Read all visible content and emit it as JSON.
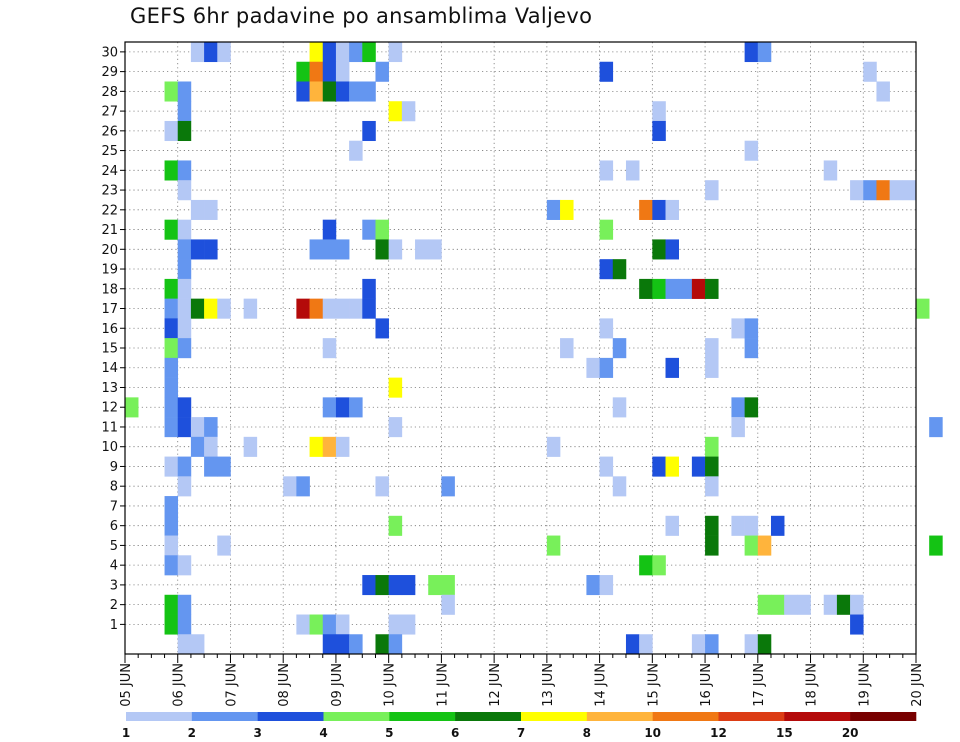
{
  "chart_data": {
    "type": "heatmap",
    "title": "GEFS 6hr padavine po ansamblima Valjevo",
    "xlabel": "",
    "ylabel": "",
    "x_ticks": [
      "05 JUN",
      "06 JUN",
      "07 JUN",
      "08 JUN",
      "09 JUN",
      "10 JUN",
      "11 JUN",
      "12 JUN",
      "13 JUN",
      "14 JUN",
      "15 JUN",
      "16 JUN",
      "17 JUN",
      "18 JUN",
      "19 JUN",
      "20 JUN"
    ],
    "y_ticks": [
      "1",
      "2",
      "3",
      "4",
      "5",
      "6",
      "7",
      "8",
      "9",
      "10",
      "11",
      "12",
      "13",
      "14",
      "15",
      "16",
      "17",
      "18",
      "19",
      "20",
      "21",
      "22",
      "23",
      "24",
      "25",
      "26",
      "27",
      "28",
      "29",
      "30"
    ],
    "time_steps_per_day": 4,
    "grid": true,
    "legend": {
      "position": "bottom",
      "labels": [
        "1",
        "2",
        "3",
        "4",
        "5",
        "6",
        "7",
        "8",
        "10",
        "12",
        "15",
        "20"
      ],
      "colors": [
        "#b4c8f5",
        "#6496f0",
        "#1e50dc",
        "#78f05a",
        "#14c314",
        "#0a780a",
        "#ffff00",
        "#ffb43c",
        "#f07814",
        "#dc3c14",
        "#b40a0a",
        "#780000"
      ]
    },
    "value_scale": {
      "1": "#b4c8f5",
      "2": "#6496f0",
      "3": "#1e50dc",
      "4": "#78f05a",
      "5": "#14c314",
      "6": "#0a780a",
      "7": "#ffff00",
      "8": "#ffb43c",
      "10": "#f07814",
      "12": "#dc3c14",
      "15": "#b40a0a",
      "20": "#780000"
    },
    "cells_note": "each cell: [member, time-step index from 05 JUN 00 (6 h steps), precipitation class]",
    "cells": [
      [
        30,
        5,
        1
      ],
      [
        30,
        6,
        3
      ],
      [
        30,
        7,
        1
      ],
      [
        30,
        14,
        7
      ],
      [
        30,
        15,
        3
      ],
      [
        30,
        16,
        1
      ],
      [
        30,
        17,
        2
      ],
      [
        30,
        18,
        5
      ],
      [
        30,
        20,
        1
      ],
      [
        30,
        47,
        3
      ],
      [
        30,
        48,
        2
      ],
      [
        29,
        13,
        5
      ],
      [
        29,
        14,
        10
      ],
      [
        29,
        15,
        3
      ],
      [
        29,
        16,
        1
      ],
      [
        29,
        19,
        2
      ],
      [
        29,
        36,
        3
      ],
      [
        29,
        56,
        1
      ],
      [
        28,
        3,
        4
      ],
      [
        28,
        4,
        2
      ],
      [
        28,
        13,
        3
      ],
      [
        28,
        14,
        8
      ],
      [
        28,
        15,
        6
      ],
      [
        28,
        16,
        3
      ],
      [
        28,
        17,
        2
      ],
      [
        28,
        18,
        2
      ],
      [
        28,
        57,
        1
      ],
      [
        27,
        4,
        2
      ],
      [
        27,
        20,
        7
      ],
      [
        27,
        21,
        1
      ],
      [
        27,
        40,
        1
      ],
      [
        26,
        3,
        1
      ],
      [
        26,
        4,
        6
      ],
      [
        26,
        18,
        3
      ],
      [
        26,
        40,
        3
      ],
      [
        25,
        17,
        1
      ],
      [
        25,
        47,
        1
      ],
      [
        24,
        3,
        5
      ],
      [
        24,
        4,
        2
      ],
      [
        24,
        36,
        1
      ],
      [
        24,
        38,
        1
      ],
      [
        24,
        53,
        1
      ],
      [
        23,
        4,
        1
      ],
      [
        23,
        44,
        1
      ],
      [
        23,
        55,
        1
      ],
      [
        23,
        56,
        2
      ],
      [
        23,
        57,
        10
      ],
      [
        23,
        58,
        1
      ],
      [
        23,
        59,
        1
      ],
      [
        22,
        5,
        1
      ],
      [
        22,
        6,
        1
      ],
      [
        22,
        32,
        2
      ],
      [
        22,
        33,
        7
      ],
      [
        22,
        39,
        10
      ],
      [
        22,
        40,
        3
      ],
      [
        22,
        41,
        1
      ],
      [
        21,
        3,
        5
      ],
      [
        21,
        4,
        1
      ],
      [
        21,
        15,
        3
      ],
      [
        21,
        18,
        2
      ],
      [
        21,
        19,
        4
      ],
      [
        21,
        36,
        4
      ],
      [
        20,
        4,
        2
      ],
      [
        20,
        5,
        3
      ],
      [
        20,
        6,
        3
      ],
      [
        20,
        14,
        2
      ],
      [
        20,
        15,
        2
      ],
      [
        20,
        16,
        2
      ],
      [
        20,
        19,
        6
      ],
      [
        20,
        20,
        1
      ],
      [
        20,
        22,
        1
      ],
      [
        20,
        23,
        1
      ],
      [
        20,
        40,
        6
      ],
      [
        20,
        41,
        3
      ],
      [
        19,
        4,
        2
      ],
      [
        19,
        36,
        3
      ],
      [
        19,
        37,
        6
      ],
      [
        18,
        3,
        5
      ],
      [
        18,
        4,
        1
      ],
      [
        18,
        18,
        3
      ],
      [
        18,
        39,
        6
      ],
      [
        18,
        40,
        5
      ],
      [
        18,
        41,
        2
      ],
      [
        18,
        42,
        2
      ],
      [
        18,
        43,
        15
      ],
      [
        18,
        44,
        6
      ],
      [
        17,
        3,
        2
      ],
      [
        17,
        4,
        1
      ],
      [
        17,
        5,
        6
      ],
      [
        17,
        6,
        7
      ],
      [
        17,
        7,
        1
      ],
      [
        17,
        9,
        1
      ],
      [
        17,
        13,
        15
      ],
      [
        17,
        14,
        10
      ],
      [
        17,
        15,
        1
      ],
      [
        17,
        16,
        1
      ],
      [
        17,
        17,
        1
      ],
      [
        17,
        18,
        3
      ],
      [
        17,
        60,
        4
      ],
      [
        16,
        3,
        3
      ],
      [
        16,
        4,
        1
      ],
      [
        16,
        19,
        3
      ],
      [
        16,
        36,
        1
      ],
      [
        16,
        46,
        1
      ],
      [
        16,
        47,
        2
      ],
      [
        15,
        3,
        4
      ],
      [
        15,
        4,
        2
      ],
      [
        15,
        15,
        1
      ],
      [
        15,
        33,
        1
      ],
      [
        15,
        37,
        2
      ],
      [
        15,
        44,
        1
      ],
      [
        15,
        47,
        2
      ],
      [
        14,
        3,
        2
      ],
      [
        14,
        35,
        1
      ],
      [
        14,
        36,
        2
      ],
      [
        14,
        41,
        3
      ],
      [
        14,
        44,
        1
      ],
      [
        13,
        3,
        2
      ],
      [
        13,
        20,
        7
      ],
      [
        12,
        0,
        4
      ],
      [
        12,
        3,
        2
      ],
      [
        12,
        4,
        3
      ],
      [
        12,
        15,
        2
      ],
      [
        12,
        16,
        3
      ],
      [
        12,
        17,
        2
      ],
      [
        12,
        37,
        1
      ],
      [
        12,
        46,
        2
      ],
      [
        12,
        47,
        6
      ],
      [
        11,
        3,
        2
      ],
      [
        11,
        4,
        3
      ],
      [
        11,
        5,
        1
      ],
      [
        11,
        6,
        2
      ],
      [
        11,
        20,
        1
      ],
      [
        11,
        46,
        1
      ],
      [
        11,
        61,
        2
      ],
      [
        10,
        5,
        2
      ],
      [
        10,
        6,
        1
      ],
      [
        10,
        9,
        1
      ],
      [
        10,
        14,
        7
      ],
      [
        10,
        15,
        8
      ],
      [
        10,
        16,
        1
      ],
      [
        10,
        32,
        1
      ],
      [
        10,
        44,
        4
      ],
      [
        9,
        3,
        1
      ],
      [
        9,
        4,
        2
      ],
      [
        9,
        6,
        2
      ],
      [
        9,
        7,
        2
      ],
      [
        9,
        36,
        1
      ],
      [
        9,
        40,
        3
      ],
      [
        9,
        41,
        7
      ],
      [
        9,
        43,
        3
      ],
      [
        9,
        44,
        6
      ],
      [
        8,
        4,
        1
      ],
      [
        8,
        12,
        1
      ],
      [
        8,
        13,
        2
      ],
      [
        8,
        19,
        1
      ],
      [
        8,
        24,
        2
      ],
      [
        8,
        37,
        1
      ],
      [
        8,
        44,
        1
      ],
      [
        7,
        3,
        2
      ],
      [
        6,
        3,
        2
      ],
      [
        6,
        20,
        4
      ],
      [
        6,
        41,
        1
      ],
      [
        6,
        44,
        6
      ],
      [
        6,
        46,
        1
      ],
      [
        6,
        47,
        1
      ],
      [
        6,
        49,
        3
      ],
      [
        5,
        3,
        1
      ],
      [
        5,
        7,
        1
      ],
      [
        5,
        32,
        4
      ],
      [
        5,
        44,
        6
      ],
      [
        5,
        47,
        4
      ],
      [
        5,
        48,
        8
      ],
      [
        5,
        61,
        5
      ],
      [
        4,
        3,
        2
      ],
      [
        4,
        4,
        1
      ],
      [
        4,
        39,
        5
      ],
      [
        4,
        40,
        4
      ],
      [
        3,
        18,
        3
      ],
      [
        3,
        19,
        6
      ],
      [
        3,
        20,
        3
      ],
      [
        3,
        21,
        3
      ],
      [
        3,
        23,
        4
      ],
      [
        3,
        24,
        4
      ],
      [
        3,
        35,
        2
      ],
      [
        3,
        36,
        1
      ],
      [
        2,
        3,
        5
      ],
      [
        2,
        4,
        2
      ],
      [
        2,
        24,
        1
      ],
      [
        2,
        48,
        4
      ],
      [
        2,
        49,
        4
      ],
      [
        2,
        50,
        1
      ],
      [
        2,
        51,
        1
      ],
      [
        2,
        53,
        1
      ],
      [
        2,
        54,
        6
      ],
      [
        2,
        55,
        1
      ],
      [
        1,
        3,
        5
      ],
      [
        1,
        4,
        2
      ],
      [
        1,
        13,
        1
      ],
      [
        1,
        14,
        4
      ],
      [
        1,
        15,
        2
      ],
      [
        1,
        16,
        1
      ],
      [
        1,
        20,
        1
      ],
      [
        1,
        21,
        1
      ],
      [
        1,
        55,
        3
      ],
      [
        0,
        4,
        1
      ],
      [
        0,
        5,
        1
      ],
      [
        0,
        15,
        3
      ],
      [
        0,
        16,
        3
      ],
      [
        0,
        17,
        2
      ],
      [
        0,
        19,
        6
      ],
      [
        0,
        20,
        2
      ],
      [
        0,
        38,
        3
      ],
      [
        0,
        39,
        1
      ],
      [
        0,
        43,
        1
      ],
      [
        0,
        44,
        2
      ],
      [
        0,
        47,
        1
      ],
      [
        0,
        48,
        6
      ]
    ]
  }
}
